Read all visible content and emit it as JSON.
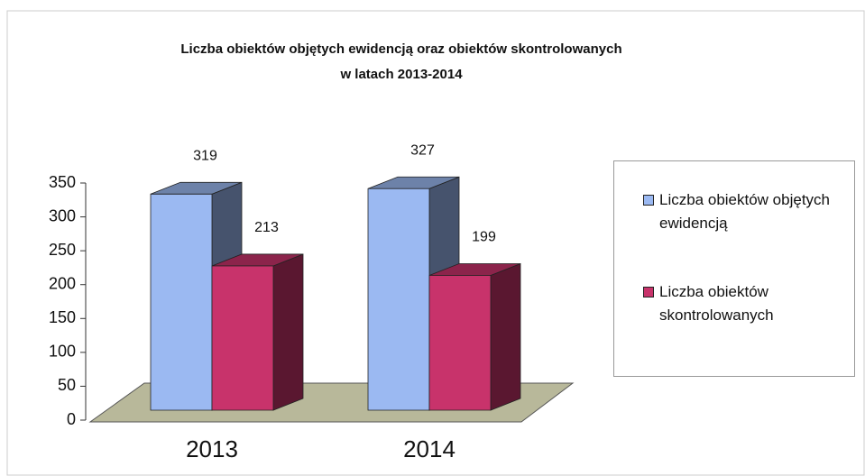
{
  "chart_data": {
    "type": "bar3d",
    "title": [
      "Liczba obiektów objętych ewidencją oraz obiektów skontrolowanych",
      "w latach 2013-2014"
    ],
    "categories": [
      "2013",
      "2014"
    ],
    "series": [
      {
        "name": "Liczba obiektów objętych ewidencją",
        "color": "#9bb9f2",
        "values": [
          319,
          327
        ]
      },
      {
        "name": "Liczba obiektów skontrolowanych",
        "color": "#c8336b",
        "values": [
          213,
          199
        ]
      }
    ],
    "ylim": [
      0,
      350
    ],
    "yticks": [
      0,
      50,
      100,
      150,
      200,
      250,
      300,
      350
    ],
    "legend": "right"
  }
}
